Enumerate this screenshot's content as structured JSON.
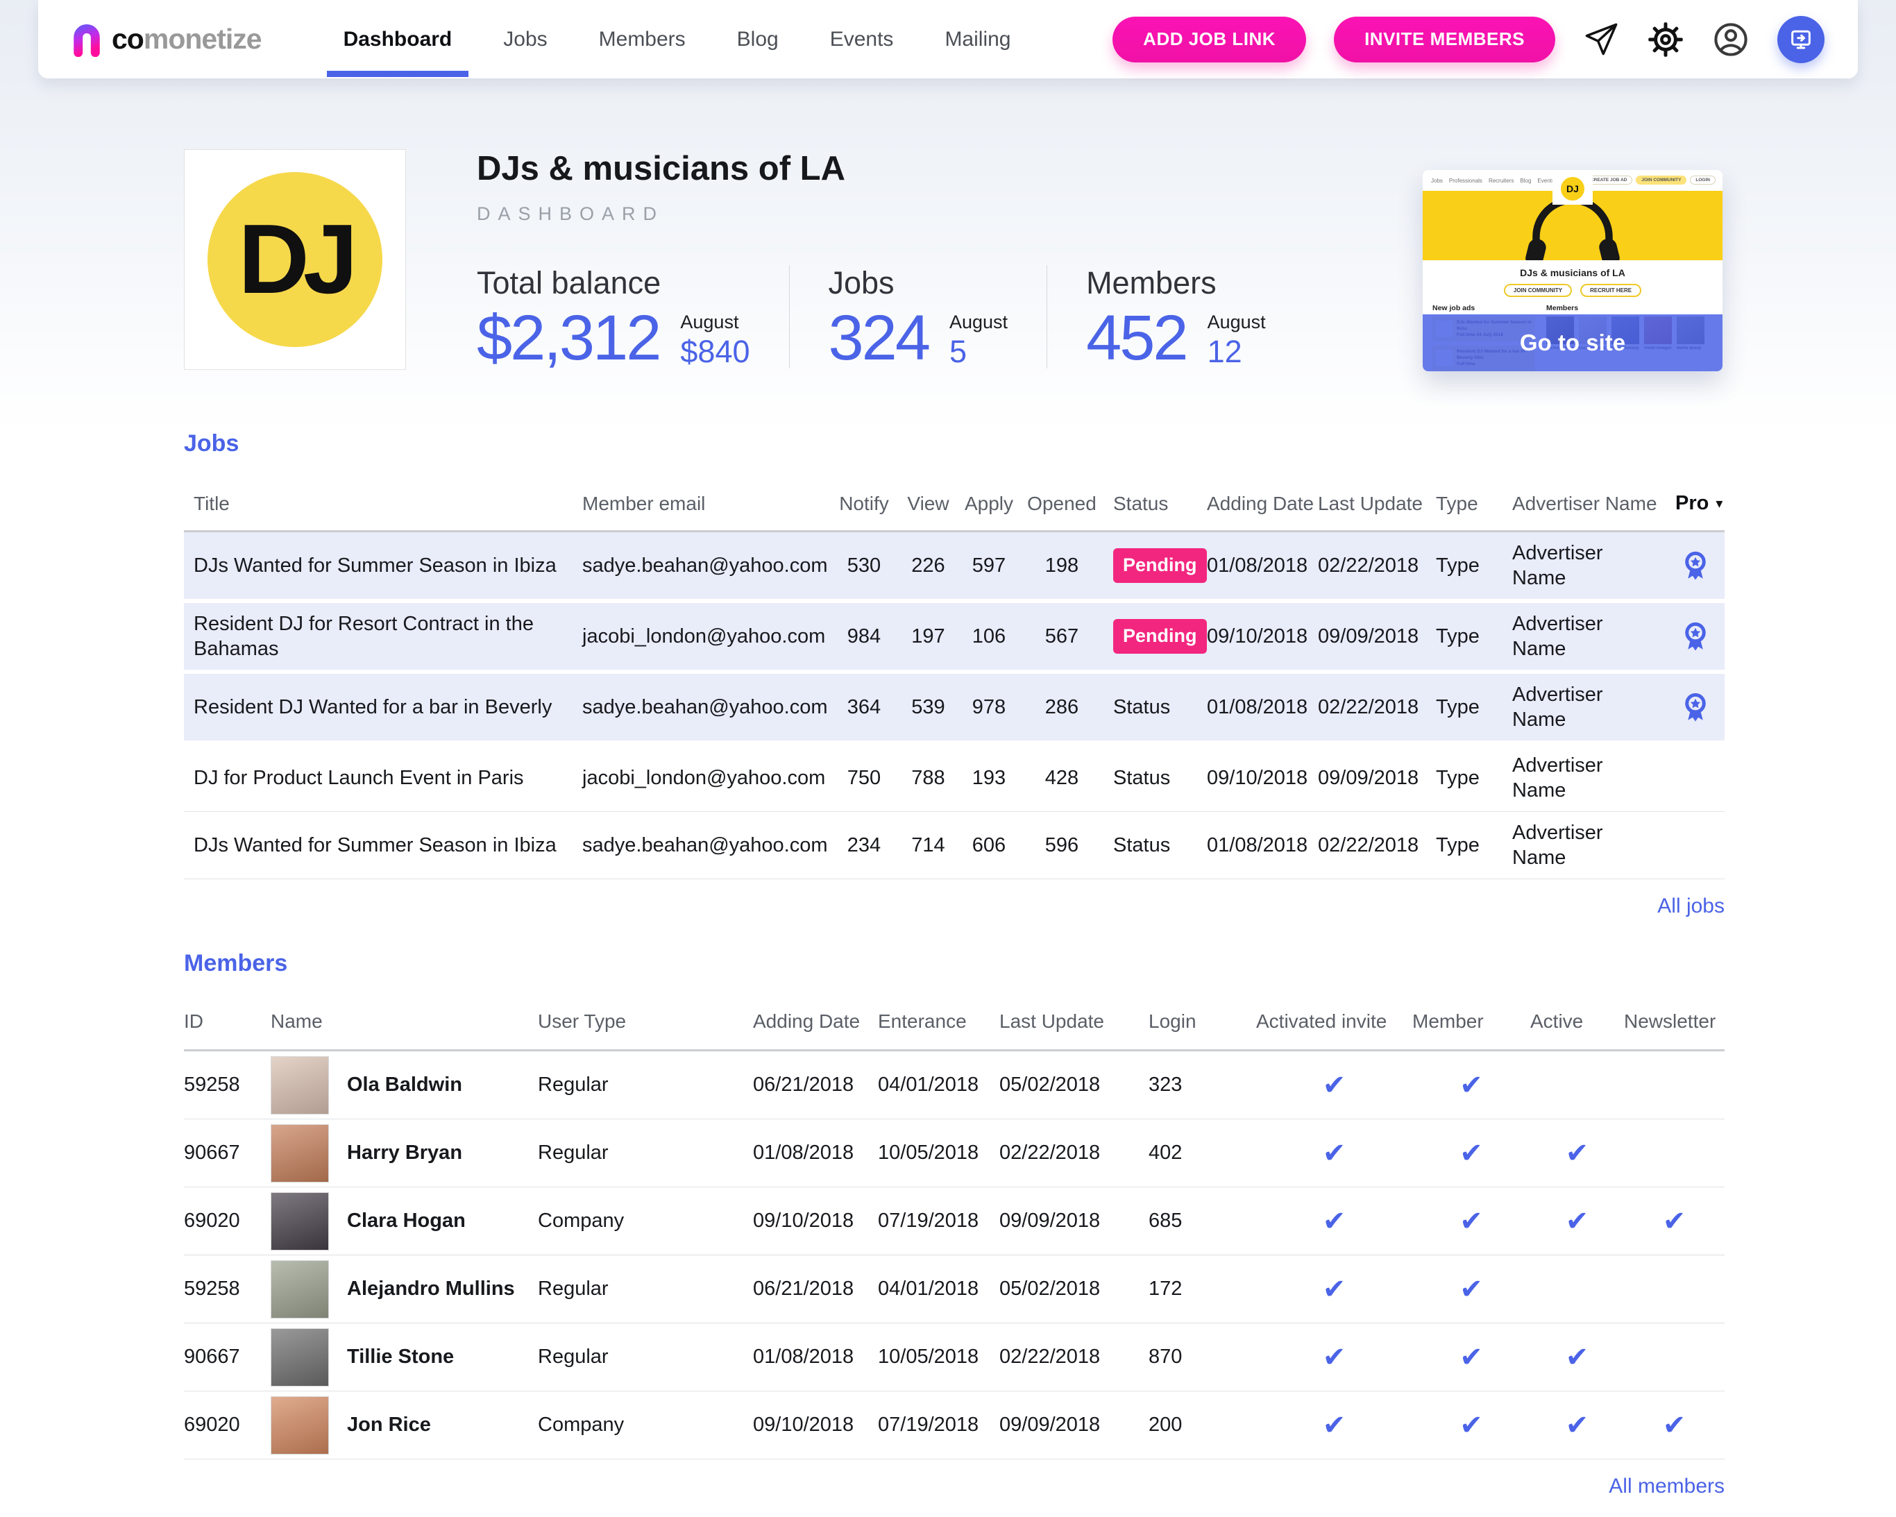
{
  "colors": {
    "accent_blue": "#4a63e7",
    "button_pink": "#f011a6",
    "badge_pink": "#f2267f",
    "yellow": "#f6d84b"
  },
  "nav": {
    "logo": {
      "co": "co",
      "monetize": "monetize"
    },
    "items": [
      {
        "label": "Dashboard",
        "active": true
      },
      {
        "label": "Jobs",
        "active": false
      },
      {
        "label": "Members",
        "active": false
      },
      {
        "label": "Blog",
        "active": false
      },
      {
        "label": "Events",
        "active": false
      },
      {
        "label": "Mailing",
        "active": false
      }
    ],
    "buttons": [
      {
        "label": "ADD JOB LINK"
      },
      {
        "label": "INVITE MEMBERS"
      }
    ],
    "icon_buttons": [
      "paper-plane-icon",
      "gear-icon",
      "profile-icon",
      "go-to-site-icon"
    ]
  },
  "header": {
    "avatar_text": "DJ",
    "title": "DJs & musicians of LA",
    "subtitle": "DASHBOARD",
    "stats": [
      {
        "label": "Total balance",
        "value": "$2,312",
        "period": "August",
        "period_value": "$840"
      },
      {
        "label": "Jobs",
        "value": "324",
        "period": "August",
        "period_value": "5"
      },
      {
        "label": "Members",
        "value": "452",
        "period": "August",
        "period_value": "12"
      }
    ],
    "preview": {
      "overlay_label": "Go to site",
      "logo_text": "DJ",
      "nav_links": [
        "Jobs",
        "Professionals",
        "Recruiters",
        "Blog",
        "Events"
      ],
      "header_buttons": [
        "CREATE JOB AD",
        "JOIN COMMUNITY",
        "LOGIN"
      ],
      "site_title": "DJs & musicians of LA",
      "cta_buttons": [
        "JOIN COMMUNITY",
        "RECRUIT HERE"
      ],
      "section_jobs": "New job ads",
      "section_members": "Members",
      "job_cards": [
        {
          "title": "DJs Wanted for Summer Season in Ibiza",
          "meta": "Full time 24 July 2018"
        },
        {
          "title": "Resident DJ Wanted for a bar in Beverly Hills",
          "meta": "Full time"
        }
      ],
      "member_thumbs": [
        {
          "name": "Nicholas Mann",
          "color": "#3e3e48"
        },
        {
          "name": "Daisy Barnett",
          "color": "#e6d9c8"
        },
        {
          "name": "Millie Ramsey",
          "color": "#5a5f8e"
        },
        {
          "name": "Violet Rodgers",
          "color": "#b85a66"
        },
        {
          "name": "Nettie Brady",
          "color": "#7d8370"
        }
      ]
    }
  },
  "jobs": {
    "heading": "Jobs",
    "columns": [
      "Title",
      "Member email",
      "Notify",
      "View",
      "Apply",
      "Opened",
      "Status",
      "Adding Date",
      "Last Update",
      "Type",
      "Advertiser Name",
      "Pro"
    ],
    "rows": [
      {
        "title": "DJs Wanted for Summer Season in Ibiza",
        "email": "sadye.beahan@yahoo.com",
        "notify": "530",
        "view": "226",
        "apply": "597",
        "opened": "198",
        "status": "Pending",
        "status_badge": true,
        "adding_date": "01/08/2018",
        "last_update": "02/22/2018",
        "type": "Type",
        "advertiser": "Advertiser Name",
        "pro": true,
        "highlight": true
      },
      {
        "title": "Resident DJ for Resort Contract in the Bahamas",
        "email": "jacobi_london@yahoo.com",
        "notify": "984",
        "view": "197",
        "apply": "106",
        "opened": "567",
        "status": "Pending",
        "status_badge": true,
        "adding_date": "09/10/2018",
        "last_update": "09/09/2018",
        "type": "Type",
        "advertiser": "Advertiser Name",
        "pro": true,
        "highlight": true
      },
      {
        "title": "Resident DJ Wanted for a bar in Beverly",
        "email": "sadye.beahan@yahoo.com",
        "notify": "364",
        "view": "539",
        "apply": "978",
        "opened": "286",
        "status": "Status",
        "status_badge": false,
        "adding_date": "01/08/2018",
        "last_update": "02/22/2018",
        "type": "Type",
        "advertiser": "Advertiser Name",
        "pro": true,
        "highlight": true
      },
      {
        "title": "DJ for Product Launch Event in Paris",
        "email": "jacobi_london@yahoo.com",
        "notify": "750",
        "view": "788",
        "apply": "193",
        "opened": "428",
        "status": "Status",
        "status_badge": false,
        "adding_date": "09/10/2018",
        "last_update": "09/09/2018",
        "type": "Type",
        "advertiser": "Advertiser Name",
        "pro": false,
        "highlight": false
      },
      {
        "title": "DJs Wanted for Summer Season in Ibiza",
        "email": "sadye.beahan@yahoo.com",
        "notify": "234",
        "view": "714",
        "apply": "606",
        "opened": "596",
        "status": "Status",
        "status_badge": false,
        "adding_date": "01/08/2018",
        "last_update": "02/22/2018",
        "type": "Type",
        "advertiser": "Advertiser Name",
        "pro": false,
        "highlight": false
      }
    ],
    "all_link": "All jobs"
  },
  "members": {
    "heading": "Members",
    "columns": [
      "ID",
      "Name",
      "User Type",
      "Adding Date",
      "Enterance",
      "Last Update",
      "Login",
      "Activated invite",
      "Member",
      "Active",
      "Newsletter"
    ],
    "rows": [
      {
        "id": "59258",
        "name": "Ola Baldwin",
        "user_type": "Regular",
        "adding_date": "06/21/2018",
        "enterance": "04/01/2018",
        "last_update": "05/02/2018",
        "login": "323",
        "activated": true,
        "member": true,
        "active": false,
        "newsletter": false,
        "avatar_color": "#d9c0b1"
      },
      {
        "id": "90667",
        "name": "Harry Bryan",
        "user_type": "Regular",
        "adding_date": "01/08/2018",
        "enterance": "10/05/2018",
        "last_update": "02/22/2018",
        "login": "402",
        "activated": true,
        "member": true,
        "active": true,
        "newsletter": false,
        "avatar_color": "#c67f5a"
      },
      {
        "id": "69020",
        "name": "Clara Hogan",
        "user_type": "Company",
        "adding_date": "09/10/2018",
        "enterance": "07/19/2018",
        "last_update": "09/09/2018",
        "login": "685",
        "activated": true,
        "member": true,
        "active": true,
        "newsletter": true,
        "avatar_color": "#46404a"
      },
      {
        "id": "59258",
        "name": "Alejandro Mullins",
        "user_type": "Regular",
        "adding_date": "06/21/2018",
        "enterance": "04/01/2018",
        "last_update": "05/02/2018",
        "login": "172",
        "activated": true,
        "member": true,
        "active": false,
        "newsletter": false,
        "avatar_color": "#9aa08e"
      },
      {
        "id": "90667",
        "name": "Tillie Stone",
        "user_type": "Regular",
        "adding_date": "01/08/2018",
        "enterance": "10/05/2018",
        "last_update": "02/22/2018",
        "login": "870",
        "activated": true,
        "member": true,
        "active": true,
        "newsletter": false,
        "avatar_color": "#6e6e6e"
      },
      {
        "id": "69020",
        "name": "Jon Rice",
        "user_type": "Company",
        "adding_date": "09/10/2018",
        "enterance": "07/19/2018",
        "last_update": "09/09/2018",
        "login": "200",
        "activated": true,
        "member": true,
        "active": true,
        "newsletter": true,
        "avatar_color": "#d2875e"
      }
    ],
    "all_link": "All members"
  }
}
